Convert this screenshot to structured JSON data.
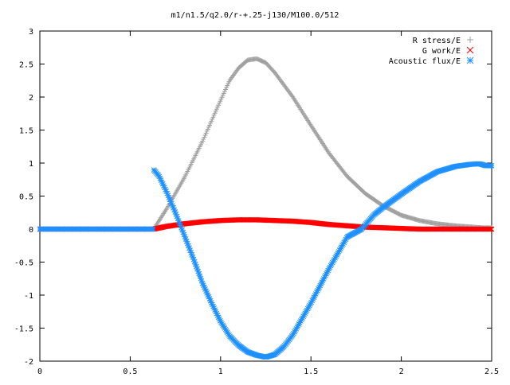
{
  "chart_data": {
    "type": "scatter",
    "title": "m1/n1.5/q2.0/r-+.25-j130/M100.0/512",
    "xlabel": "",
    "ylabel": "",
    "xlim": [
      0,
      2.5
    ],
    "ylim": [
      -2,
      3
    ],
    "x_ticks": [
      "0",
      "0.5",
      "1",
      "1.5",
      "2",
      "2.5"
    ],
    "y_ticks": [
      "3",
      "2.5",
      "2",
      "1.5",
      "1",
      "0.5",
      "0",
      "-0.5",
      "-1",
      "-1.5",
      "-2"
    ],
    "grid": false,
    "legend_position": "top-right",
    "series": [
      {
        "name": "R stress/E",
        "marker": "plus",
        "color": "#a0a0a0",
        "x": [
          0.63,
          0.7,
          0.8,
          0.9,
          1.0,
          1.05,
          1.1,
          1.15,
          1.2,
          1.25,
          1.3,
          1.4,
          1.5,
          1.6,
          1.7,
          1.8,
          1.9,
          2.0,
          2.1,
          2.2,
          2.3,
          2.4,
          2.45
        ],
        "y": [
          0.0,
          0.3,
          0.78,
          1.33,
          1.95,
          2.25,
          2.44,
          2.56,
          2.58,
          2.52,
          2.37,
          2.0,
          1.57,
          1.15,
          0.8,
          0.54,
          0.35,
          0.21,
          0.13,
          0.08,
          0.05,
          0.03,
          0.02
        ]
      },
      {
        "name": "G work/E",
        "marker": "cross",
        "color": "#ff0000",
        "x": [
          0.63,
          0.7,
          0.8,
          0.9,
          1.0,
          1.1,
          1.2,
          1.3,
          1.4,
          1.5,
          1.6,
          1.7,
          1.8,
          1.9,
          2.0,
          2.1,
          2.2,
          2.3,
          2.4,
          2.45
        ],
        "y": [
          0.0,
          0.04,
          0.08,
          0.11,
          0.13,
          0.14,
          0.14,
          0.13,
          0.12,
          0.1,
          0.07,
          0.05,
          0.03,
          0.02,
          0.01,
          0.0,
          0.0,
          0.0,
          0.0,
          0.0
        ]
      },
      {
        "name": "Acoustic flux/E",
        "marker": "star",
        "color": "#1e90ff",
        "x": [
          0.63,
          0.66,
          0.7,
          0.75,
          0.8,
          0.85,
          0.9,
          0.95,
          1.0,
          1.05,
          1.1,
          1.15,
          1.2,
          1.25,
          1.3,
          1.35,
          1.4,
          1.5,
          1.6,
          1.7,
          1.78,
          1.85,
          1.9,
          2.0,
          2.1,
          2.2,
          2.3,
          2.38,
          2.43,
          2.47
        ],
        "y": [
          0.9,
          0.8,
          0.57,
          0.25,
          -0.1,
          -0.45,
          -0.82,
          -1.12,
          -1.4,
          -1.62,
          -1.76,
          -1.86,
          -1.91,
          -1.94,
          -1.9,
          -1.78,
          -1.6,
          -1.12,
          -0.6,
          -0.12,
          0.0,
          0.22,
          0.33,
          0.53,
          0.72,
          0.87,
          0.95,
          0.98,
          0.99,
          0.96
        ]
      }
    ]
  }
}
